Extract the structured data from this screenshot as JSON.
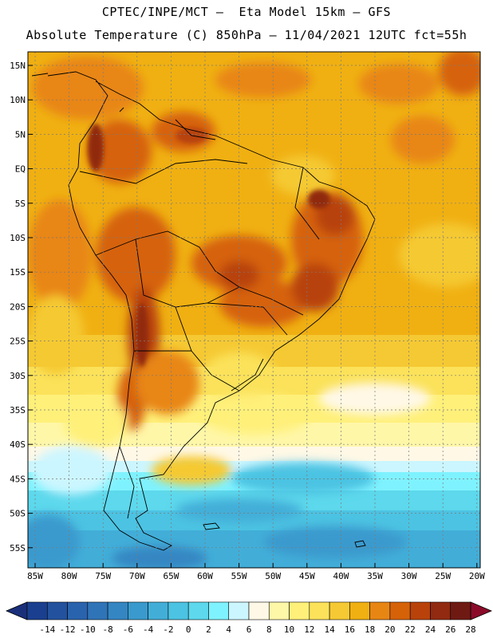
{
  "header": {
    "line1": "CPTEC/INPE/MCT –  Eta Model 15km – GFS",
    "line2": "Absolute Temperature (C) 850hPa – 11/04/2021 12UTC fct=55h"
  },
  "axes": {
    "lat_labels": [
      "15N",
      "10N",
      "5N",
      "EQ",
      "5S",
      "10S",
      "15S",
      "20S",
      "25S",
      "30S",
      "35S",
      "40S",
      "45S",
      "50S",
      "55S"
    ],
    "lon_labels": [
      "85W",
      "80W",
      "75W",
      "70W",
      "65W",
      "60W",
      "55W",
      "50W",
      "45W",
      "40W",
      "35W",
      "30W",
      "25W",
      "20W"
    ]
  },
  "colorbar": {
    "labels": [
      "-14",
      "-12",
      "-10",
      "-8",
      "-6",
      "-4",
      "-2",
      "0",
      "2",
      "4",
      "6",
      "8",
      "10",
      "12",
      "14",
      "16",
      "18",
      "20",
      "22",
      "24",
      "26",
      "28"
    ],
    "colors": [
      "#1a3f8f",
      "#23519e",
      "#2a63ad",
      "#3074b8",
      "#3486c2",
      "#3a9acd",
      "#42aed8",
      "#4cc3e2",
      "#5dd8ec",
      "#7ff2ff",
      "#ccf6ff",
      "#fff8e6",
      "#fff7a8",
      "#fff07a",
      "#fbe25a",
      "#f5c933",
      "#f0b012",
      "#e88614",
      "#d66208",
      "#b8420a",
      "#912a10",
      "#6e1a12"
    ],
    "under_color": "#1a2f7a",
    "over_color": "#8b0a2a"
  }
}
